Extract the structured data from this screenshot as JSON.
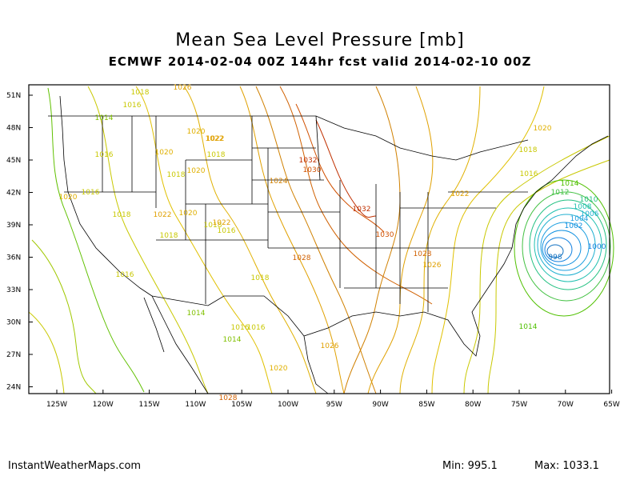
{
  "title": "Mean Sea Level Pressure [mb]",
  "subtitle": "ECMWF 2014-02-04 00Z 144hr fcst valid 2014-02-10 00Z",
  "footer": {
    "site": "InstantWeatherMaps.com",
    "min_label": "Min:",
    "min_value": "995.1",
    "max_label": "Max:",
    "max_value": "1033.1"
  },
  "axes": {
    "lat_labels": [
      "51N",
      "48N",
      "45N",
      "42N",
      "39N",
      "36N",
      "33N",
      "30N",
      "27N",
      "24N"
    ],
    "lon_labels": [
      "125W",
      "120W",
      "115W",
      "110W",
      "105W",
      "100W",
      "95W",
      "90W",
      "85W",
      "80W",
      "75W",
      "70W",
      "65W"
    ]
  },
  "contour_labels": [
    {
      "text": "1026",
      "color": "#e0a000"
    },
    {
      "text": "1018",
      "color": "#c8c800"
    },
    {
      "text": "1016",
      "color": "#c8c800"
    },
    {
      "text": "1014",
      "color": "#80c000"
    },
    {
      "text": "1020",
      "color": "#e0b000"
    },
    {
      "text": "1022",
      "color": "#e0a000"
    },
    {
      "text": "1018",
      "color": "#c8c800"
    },
    {
      "text": "1032",
      "color": "#c03000"
    },
    {
      "text": "1030",
      "color": "#d05000"
    },
    {
      "text": "1024",
      "color": "#d08000"
    },
    {
      "text": "1032",
      "color": "#c03000"
    },
    {
      "text": "1030",
      "color": "#d05000"
    },
    {
      "text": "1028",
      "color": "#d06000"
    },
    {
      "text": "1028",
      "color": "#d06000"
    },
    {
      "text": "1026",
      "color": "#e0a000"
    },
    {
      "text": "1022",
      "color": "#e0a000"
    },
    {
      "text": "1020",
      "color": "#e0b000"
    },
    {
      "text": "1018",
      "color": "#c8c800"
    },
    {
      "text": "1016",
      "color": "#c8c800"
    },
    {
      "text": "1014",
      "color": "#50c000"
    },
    {
      "text": "1012",
      "color": "#40c040"
    },
    {
      "text": "1010",
      "color": "#20c080"
    },
    {
      "text": "1008",
      "color": "#20c0b0"
    },
    {
      "text": "1006",
      "color": "#20b0d0"
    },
    {
      "text": "1004",
      "color": "#20a0e0"
    },
    {
      "text": "1002",
      "color": "#1090e0"
    },
    {
      "text": "1000",
      "color": "#1080e0"
    },
    {
      "text": "998",
      "color": "#1070c0"
    },
    {
      "text": "1014",
      "color": "#50c000"
    },
    {
      "text": "1016",
      "color": "#c8c800"
    },
    {
      "text": "1020",
      "color": "#e0b000"
    },
    {
      "text": "1022",
      "color": "#e0a000"
    },
    {
      "text": "1020",
      "color": "#e0b000"
    },
    {
      "text": "1018",
      "color": "#c8c800"
    },
    {
      "text": "1016",
      "color": "#c8c800"
    },
    {
      "text": "1020",
      "color": "#e0b000"
    },
    {
      "text": "1018",
      "color": "#c8c800"
    },
    {
      "text": "1022",
      "color": "#e0a000"
    },
    {
      "text": "1020",
      "color": "#e0b000"
    },
    {
      "text": "1018",
      "color": "#c8c800"
    },
    {
      "text": "1016",
      "color": "#c8c800"
    },
    {
      "text": "1014",
      "color": "#80c000"
    },
    {
      "text": "1018",
      "color": "#c8c800"
    },
    {
      "text": "1014",
      "color": "#80c000"
    },
    {
      "text": "1020",
      "color": "#e0b000"
    },
    {
      "text": "1016",
      "color": "#c8c800"
    },
    {
      "text": "1016",
      "color": "#c8c800"
    },
    {
      "text": "1026",
      "color": "#e0a000"
    },
    {
      "text": "1028",
      "color": "#d06000"
    },
    {
      "text": "1018",
      "color": "#c8c800"
    },
    {
      "text": "1016",
      "color": "#c8c800"
    },
    {
      "text": "1022",
      "color": "#e0a000"
    }
  ]
}
